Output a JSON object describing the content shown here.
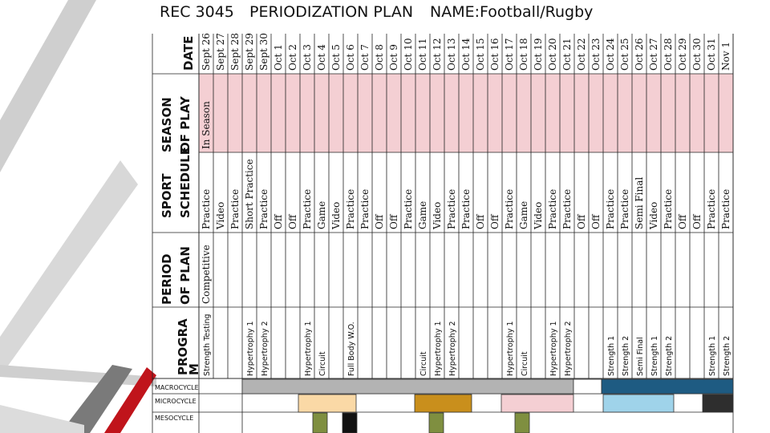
{
  "header": {
    "course": "REC 3045",
    "plan_title": "PERIODIZATION PLAN",
    "name": "NAME:Football/Rugby"
  },
  "table": {
    "col_headers": {
      "date": "DATE",
      "season": "SEASON OF PLAY",
      "sport_schedule": "SPORT SCHEDULE",
      "period": "PERIOD OF PLAN",
      "program": "PROGRAM"
    },
    "dates": [
      "Sept 26",
      "Sept 27",
      "Sept 28",
      "Sept 29",
      "Sept 30",
      "Oct 1",
      "Oct 2",
      "Oct 3",
      "Oct 4",
      "Oct 5",
      "Oct 6",
      "Oct 7",
      "Oct 8",
      "Oct 9",
      "Oct 10",
      "Oct 11",
      "Oct 12",
      "Oct 13",
      "Oct 14",
      "Oct 15",
      "Oct 16",
      "Oct 17",
      "Oct 18",
      "Oct 19",
      "Oct 20",
      "Oct 21",
      "Oct 22",
      "Oct 23",
      "Oct 24",
      "Oct 25",
      "Oct 26",
      "Oct 27",
      "Oct 28",
      "Oct 29",
      "Oct 30",
      "Oct 31",
      "Nov 1"
    ],
    "season_text": "In Season",
    "sport_schedule": [
      "Practice",
      "Video",
      "Practice",
      "Short Practice",
      "Practice",
      "Off",
      "Off",
      "Practice",
      "Game",
      "Video",
      "Practice",
      "Practice",
      "Off",
      "Off",
      "Practice",
      "Game",
      "Video",
      "Practice",
      "Practice",
      "Off",
      "Off",
      "Practice",
      "Game",
      "Video",
      "Practice",
      "Practice",
      "Off",
      "Off",
      "Practice",
      "Practice",
      "Semi Final",
      "Video",
      "Practice",
      "Off",
      "Off",
      "Practice",
      "Practice"
    ],
    "period_text": "Competitive",
    "program": [
      "Strength Testing",
      "",
      "",
      "Hypertrophy 1",
      "Hypertrophy 2",
      "",
      "",
      "Hypertrophy 1",
      "Circuit",
      "",
      "Full Body W.O.",
      "",
      "",
      "",
      "",
      "Circuit",
      "Hypertrophy 1",
      "Hypertrophy 2",
      "",
      "",
      "",
      "Hypertrophy 1",
      "Circuit",
      "",
      "Hypertrophy 1",
      "Hypertrophy 2",
      "",
      "",
      "Strength 1",
      "Strength 2",
      "Semi Final",
      "Strength 1",
      "Strength 2",
      "",
      "",
      "Strength 1",
      "Strength 2"
    ],
    "cycle_labels": [
      "MACROCYCLE",
      "MICROCYCLE",
      "MESOCYCLE"
    ]
  },
  "colors": {
    "season_bg": "#f4cfd3",
    "macro_gray": "#b3b3b3",
    "macro_blue": "#1e5b82",
    "micro_peach": "#fad9a6",
    "micro_gold": "#c98f1c",
    "micro_pink": "#f4cfd3",
    "micro_lightblue": "#9fd3ea",
    "micro_dark": "#2e2e2e",
    "meso_green": "#7f8f40",
    "meso_black": "#111111",
    "deco_red": "#c0141b"
  }
}
